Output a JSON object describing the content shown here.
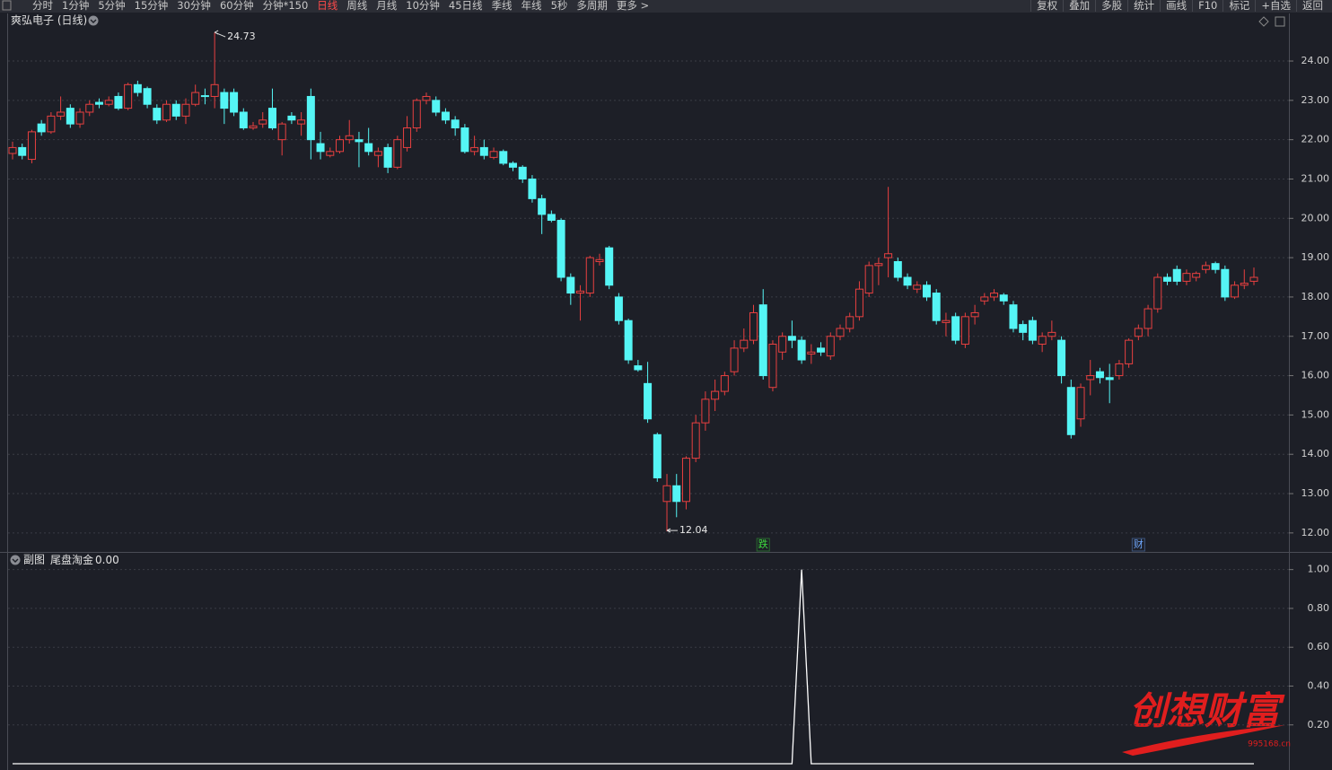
{
  "toolbar": {
    "left": [
      "分时",
      "1分钟",
      "5分钟",
      "15分钟",
      "30分钟",
      "60分钟",
      "分钟*150",
      "日线",
      "周线",
      "月线",
      "10分钟",
      "45日线",
      "季线",
      "年线",
      "5秒",
      "多周期",
      "更多 >"
    ],
    "active": "日线",
    "right": [
      "复权",
      "叠加",
      "多股",
      "统计",
      "画线",
      "F10",
      "标记",
      "+自选",
      "返回"
    ]
  },
  "watermark": {
    "text": "创想财富",
    "url": "995168.cn"
  },
  "chart_data": [
    {
      "type": "candlestick",
      "title": "爽弘电子 (日线)",
      "up_color": "#e84040",
      "down_color": "#55f5f5",
      "grid": true,
      "ylim": [
        11.54,
        25.21
      ],
      "yticks": [
        {
          "value": 12,
          "label": "12.00"
        },
        {
          "value": 13,
          "label": "13.00"
        },
        {
          "value": 14,
          "label": "14.00"
        },
        {
          "value": 15,
          "label": "15.00"
        },
        {
          "value": 16,
          "label": "16.00"
        },
        {
          "value": 17,
          "label": "17.00"
        },
        {
          "value": 18,
          "label": "18.00"
        },
        {
          "value": 19,
          "label": "19.00"
        },
        {
          "value": 20,
          "label": "20.00"
        },
        {
          "value": 21,
          "label": "21.00"
        },
        {
          "value": 22,
          "label": "22.00"
        },
        {
          "value": 23,
          "label": "23.00"
        },
        {
          "value": 24,
          "label": "24.00"
        }
      ],
      "open": [
        21.65,
        21.8,
        21.5,
        22.4,
        22.2,
        22.6,
        22.8,
        22.4,
        22.7,
        22.95,
        22.9,
        23.1,
        22.8,
        23.4,
        23.3,
        22.8,
        22.5,
        22.9,
        22.6,
        22.9,
        23.12,
        23.1,
        23.2,
        23.2,
        22.7,
        22.3,
        22.4,
        22.8,
        22.0,
        22.6,
        22.4,
        23.1,
        21.9,
        21.6,
        21.7,
        22.0,
        22.0,
        21.9,
        21.6,
        21.8,
        21.3,
        21.8,
        22.3,
        23.0,
        23.0,
        22.7,
        22.5,
        22.3,
        21.7,
        21.8,
        21.55,
        21.7,
        21.4,
        21.3,
        21.0,
        20.5,
        20.1,
        19.95,
        18.5,
        18.1,
        18.1,
        18.9,
        19.25,
        18.0,
        17.4,
        16.25,
        15.8,
        14.5,
        12.8,
        13.2,
        12.8,
        13.9,
        14.8,
        15.4,
        15.6,
        16.1,
        16.7,
        16.9,
        17.8,
        15.7,
        16.6,
        17.0,
        16.9,
        16.55,
        16.7,
        16.5,
        17.0,
        17.2,
        17.5,
        18.1,
        18.8,
        19.0,
        18.9,
        18.5,
        18.2,
        18.3,
        18.1,
        17.35,
        17.5,
        16.8,
        17.5,
        17.9,
        18.0,
        18.05,
        17.8,
        17.3,
        17.4,
        16.8,
        17.0,
        16.9,
        15.7,
        14.9,
        15.9,
        16.1,
        15.95,
        16.0,
        16.3,
        17.0,
        17.2,
        17.7,
        18.5,
        18.7,
        18.4,
        18.5,
        18.7,
        18.85,
        18.7,
        18.0,
        18.3,
        18.4
      ],
      "high": [
        21.95,
        21.9,
        22.25,
        22.5,
        22.7,
        23.1,
        22.9,
        22.8,
        23.0,
        23.05,
        23.1,
        23.2,
        23.45,
        23.5,
        23.35,
        22.9,
        23.0,
        23.0,
        23.05,
        23.4,
        23.3,
        24.73,
        23.3,
        23.3,
        22.8,
        22.45,
        22.7,
        23.3,
        22.45,
        22.7,
        22.7,
        23.3,
        22.2,
        21.8,
        22.1,
        22.5,
        22.2,
        22.3,
        21.8,
        21.9,
        22.1,
        22.6,
        23.05,
        23.2,
        23.1,
        22.8,
        22.6,
        22.4,
        22.1,
        22.0,
        21.8,
        21.75,
        21.45,
        21.35,
        21.1,
        20.6,
        20.2,
        20.0,
        18.6,
        18.3,
        19.05,
        19.1,
        19.3,
        18.1,
        17.45,
        16.4,
        16.35,
        14.55,
        13.5,
        13.5,
        13.95,
        15.0,
        15.6,
        15.9,
        16.1,
        16.9,
        17.2,
        17.8,
        18.2,
        16.9,
        17.1,
        17.4,
        17.0,
        16.8,
        16.85,
        17.1,
        17.3,
        17.6,
        18.4,
        18.9,
        19.0,
        20.8,
        19.0,
        18.6,
        18.4,
        18.4,
        18.2,
        17.6,
        17.6,
        17.6,
        17.8,
        18.1,
        18.2,
        18.1,
        17.9,
        17.4,
        17.5,
        17.1,
        17.4,
        17.0,
        15.9,
        15.8,
        16.4,
        16.2,
        16.3,
        16.4,
        16.95,
        17.3,
        17.8,
        18.6,
        18.6,
        18.8,
        18.7,
        18.65,
        18.9,
        18.9,
        18.8,
        18.4,
        18.7,
        18.75
      ],
      "low": [
        21.5,
        21.5,
        21.4,
        22.1,
        22.15,
        22.5,
        22.3,
        22.3,
        22.6,
        22.8,
        22.85,
        22.75,
        22.75,
        23.1,
        22.8,
        22.4,
        22.45,
        22.5,
        22.4,
        22.85,
        22.9,
        22.8,
        22.4,
        22.6,
        22.25,
        22.25,
        22.3,
        22.25,
        21.6,
        22.4,
        22.1,
        21.5,
        21.5,
        21.55,
        21.65,
        21.9,
        21.3,
        21.6,
        21.3,
        21.15,
        21.25,
        21.7,
        22.2,
        22.9,
        22.6,
        22.4,
        22.1,
        21.65,
        21.6,
        21.5,
        21.5,
        21.35,
        21.2,
        20.9,
        20.4,
        19.6,
        19.9,
        18.4,
        17.8,
        17.4,
        18.0,
        18.8,
        18.2,
        17.3,
        16.3,
        16.1,
        14.8,
        13.3,
        12.04,
        12.4,
        12.6,
        13.8,
        14.6,
        15.1,
        15.5,
        16.0,
        16.6,
        16.8,
        15.9,
        15.6,
        16.4,
        16.7,
        16.3,
        16.3,
        16.5,
        16.4,
        16.9,
        17.1,
        17.4,
        18.0,
        18.3,
        18.5,
        18.4,
        18.2,
        18.1,
        17.9,
        17.3,
        17.0,
        16.8,
        16.7,
        17.3,
        17.8,
        17.9,
        17.8,
        17.1,
        16.9,
        16.8,
        16.6,
        16.9,
        15.8,
        14.4,
        14.7,
        15.5,
        15.8,
        15.3,
        15.9,
        16.2,
        16.9,
        17.0,
        17.6,
        18.3,
        18.3,
        18.3,
        18.4,
        18.6,
        18.6,
        17.9,
        17.95,
        18.2,
        18.3
      ],
      "close": [
        21.8,
        21.6,
        22.2,
        22.2,
        22.6,
        22.7,
        22.4,
        22.7,
        22.9,
        22.9,
        23.0,
        22.8,
        23.4,
        23.2,
        22.9,
        22.5,
        22.9,
        22.6,
        22.9,
        23.2,
        23.1,
        23.4,
        22.8,
        22.7,
        22.3,
        22.35,
        22.5,
        22.3,
        22.4,
        22.5,
        22.5,
        22.0,
        21.7,
        21.7,
        22.0,
        22.1,
        21.95,
        21.7,
        21.7,
        21.3,
        22.0,
        22.3,
        23.0,
        23.1,
        22.7,
        22.5,
        22.3,
        21.7,
        21.8,
        21.6,
        21.7,
        21.4,
        21.3,
        21.0,
        20.5,
        20.1,
        19.95,
        18.5,
        18.1,
        18.15,
        19.0,
        18.95,
        18.3,
        17.4,
        16.4,
        16.15,
        14.9,
        13.4,
        13.2,
        12.8,
        13.9,
        14.8,
        15.4,
        15.6,
        16.0,
        16.7,
        16.9,
        17.6,
        16.0,
        16.8,
        17.0,
        16.9,
        16.4,
        16.6,
        16.6,
        17.0,
        17.2,
        17.5,
        18.2,
        18.8,
        18.85,
        19.1,
        18.5,
        18.3,
        18.3,
        18.0,
        17.4,
        17.4,
        16.9,
        17.5,
        17.6,
        18.0,
        18.1,
        17.9,
        17.2,
        17.1,
        16.9,
        17.0,
        17.1,
        16.0,
        14.5,
        15.7,
        16.0,
        15.95,
        15.9,
        16.3,
        16.9,
        17.2,
        17.7,
        18.5,
        18.4,
        18.4,
        18.6,
        18.6,
        18.8,
        18.7,
        18.0,
        18.3,
        18.35,
        18.5
      ],
      "markers": [
        {
          "index": 78,
          "label": "跌",
          "color": "#3ddc3d"
        },
        {
          "index": 117,
          "label": "财",
          "color": "#6fa8ff"
        }
      ]
    },
    {
      "type": "line",
      "title": "副图",
      "grid": true,
      "series": [
        {
          "name": "尾盘淘金",
          "color": "#ffffff",
          "readout": {
            "value": 0,
            "label": "0.00"
          },
          "values": [
            0,
            0,
            0,
            0,
            0,
            0,
            0,
            0,
            0,
            0,
            0,
            0,
            0,
            0,
            0,
            0,
            0,
            0,
            0,
            0,
            0,
            0,
            0,
            0,
            0,
            0,
            0,
            0,
            0,
            0,
            0,
            0,
            0,
            0,
            0,
            0,
            0,
            0,
            0,
            0,
            0,
            0,
            0,
            0,
            0,
            0,
            0,
            0,
            0,
            0,
            0,
            0,
            0,
            0,
            0,
            0,
            0,
            0,
            0,
            0,
            0,
            0,
            0,
            0,
            0,
            0,
            0,
            0,
            0,
            0,
            0,
            0,
            0,
            0,
            0,
            0,
            0,
            0,
            0,
            0,
            0,
            0,
            1,
            0,
            0,
            0,
            0,
            0,
            0,
            0,
            0,
            0,
            0,
            0,
            0,
            0,
            0,
            0,
            0,
            0,
            0,
            0,
            0,
            0,
            0,
            0,
            0,
            0,
            0,
            0,
            0,
            0,
            0,
            0,
            0,
            0,
            0,
            0,
            0,
            0,
            0,
            0,
            0,
            0,
            0,
            0,
            0,
            0,
            0,
            0
          ]
        }
      ],
      "ylim": [
        -0.023,
        1.077
      ],
      "yticks": [
        {
          "value": 0.2,
          "label": "0.20"
        },
        {
          "value": 0.4,
          "label": "0.40"
        },
        {
          "value": 0.6,
          "label": "0.60"
        },
        {
          "value": 0.8,
          "label": "0.80"
        },
        {
          "value": 1,
          "label": "1.00"
        }
      ]
    }
  ]
}
